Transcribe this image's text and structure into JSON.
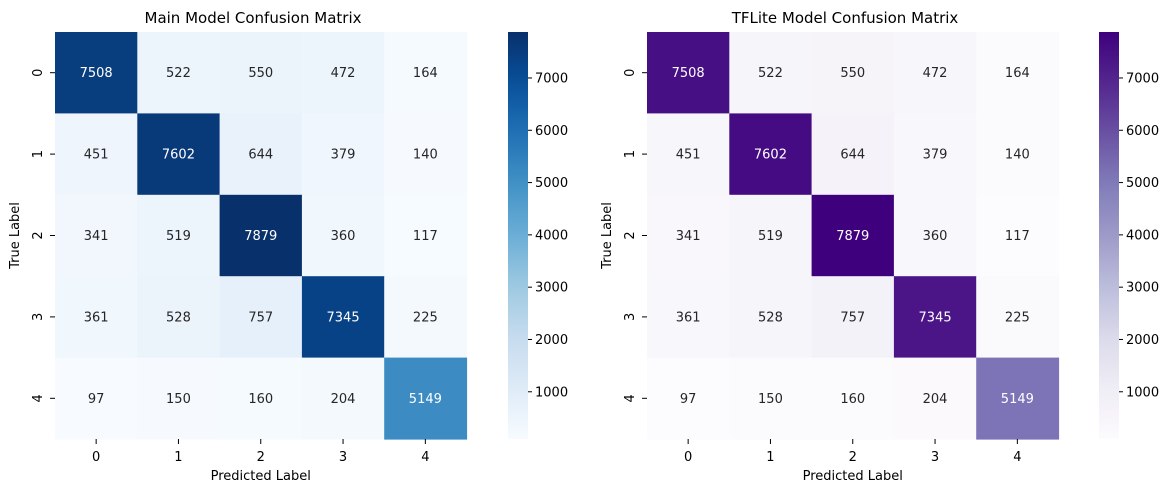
{
  "chart_data": [
    {
      "type": "heatmap",
      "title": "Main Model Confusion Matrix",
      "xlabel": "Predicted Label",
      "ylabel": "True Label",
      "x_categories": [
        "0",
        "1",
        "2",
        "3",
        "4"
      ],
      "y_categories": [
        "0",
        "1",
        "2",
        "3",
        "4"
      ],
      "values": [
        [
          7508,
          522,
          550,
          472,
          164
        ],
        [
          451,
          7602,
          644,
          379,
          140
        ],
        [
          341,
          519,
          7879,
          360,
          117
        ],
        [
          361,
          528,
          757,
          7345,
          225
        ],
        [
          97,
          150,
          160,
          204,
          5149
        ]
      ],
      "colormap": "Blues",
      "colorbar_ticks": [
        1000,
        2000,
        3000,
        4000,
        5000,
        6000,
        7000
      ],
      "vmin": 97,
      "vmax": 7879
    },
    {
      "type": "heatmap",
      "title": "TFLite Model Confusion Matrix",
      "xlabel": "Predicted Label",
      "ylabel": "True Label",
      "x_categories": [
        "0",
        "1",
        "2",
        "3",
        "4"
      ],
      "y_categories": [
        "0",
        "1",
        "2",
        "3",
        "4"
      ],
      "values": [
        [
          7508,
          522,
          550,
          472,
          164
        ],
        [
          451,
          7602,
          644,
          379,
          140
        ],
        [
          341,
          519,
          7879,
          360,
          117
        ],
        [
          361,
          528,
          757,
          7345,
          225
        ],
        [
          97,
          150,
          160,
          204,
          5149
        ]
      ],
      "colormap": "Purples",
      "colorbar_ticks": [
        1000,
        2000,
        3000,
        4000,
        5000,
        6000,
        7000
      ],
      "vmin": 97,
      "vmax": 7879
    }
  ],
  "colormaps": {
    "Blues": [
      "#f7fbff",
      "#deebf7",
      "#c6dbef",
      "#9ecae1",
      "#6baed6",
      "#4292c6",
      "#2171b5",
      "#08519c",
      "#08306b"
    ],
    "Purples": [
      "#fcfbfd",
      "#efedf5",
      "#dadaeb",
      "#bcbddc",
      "#9e9ac8",
      "#807dba",
      "#6a51a3",
      "#54278f",
      "#3f007d"
    ]
  }
}
